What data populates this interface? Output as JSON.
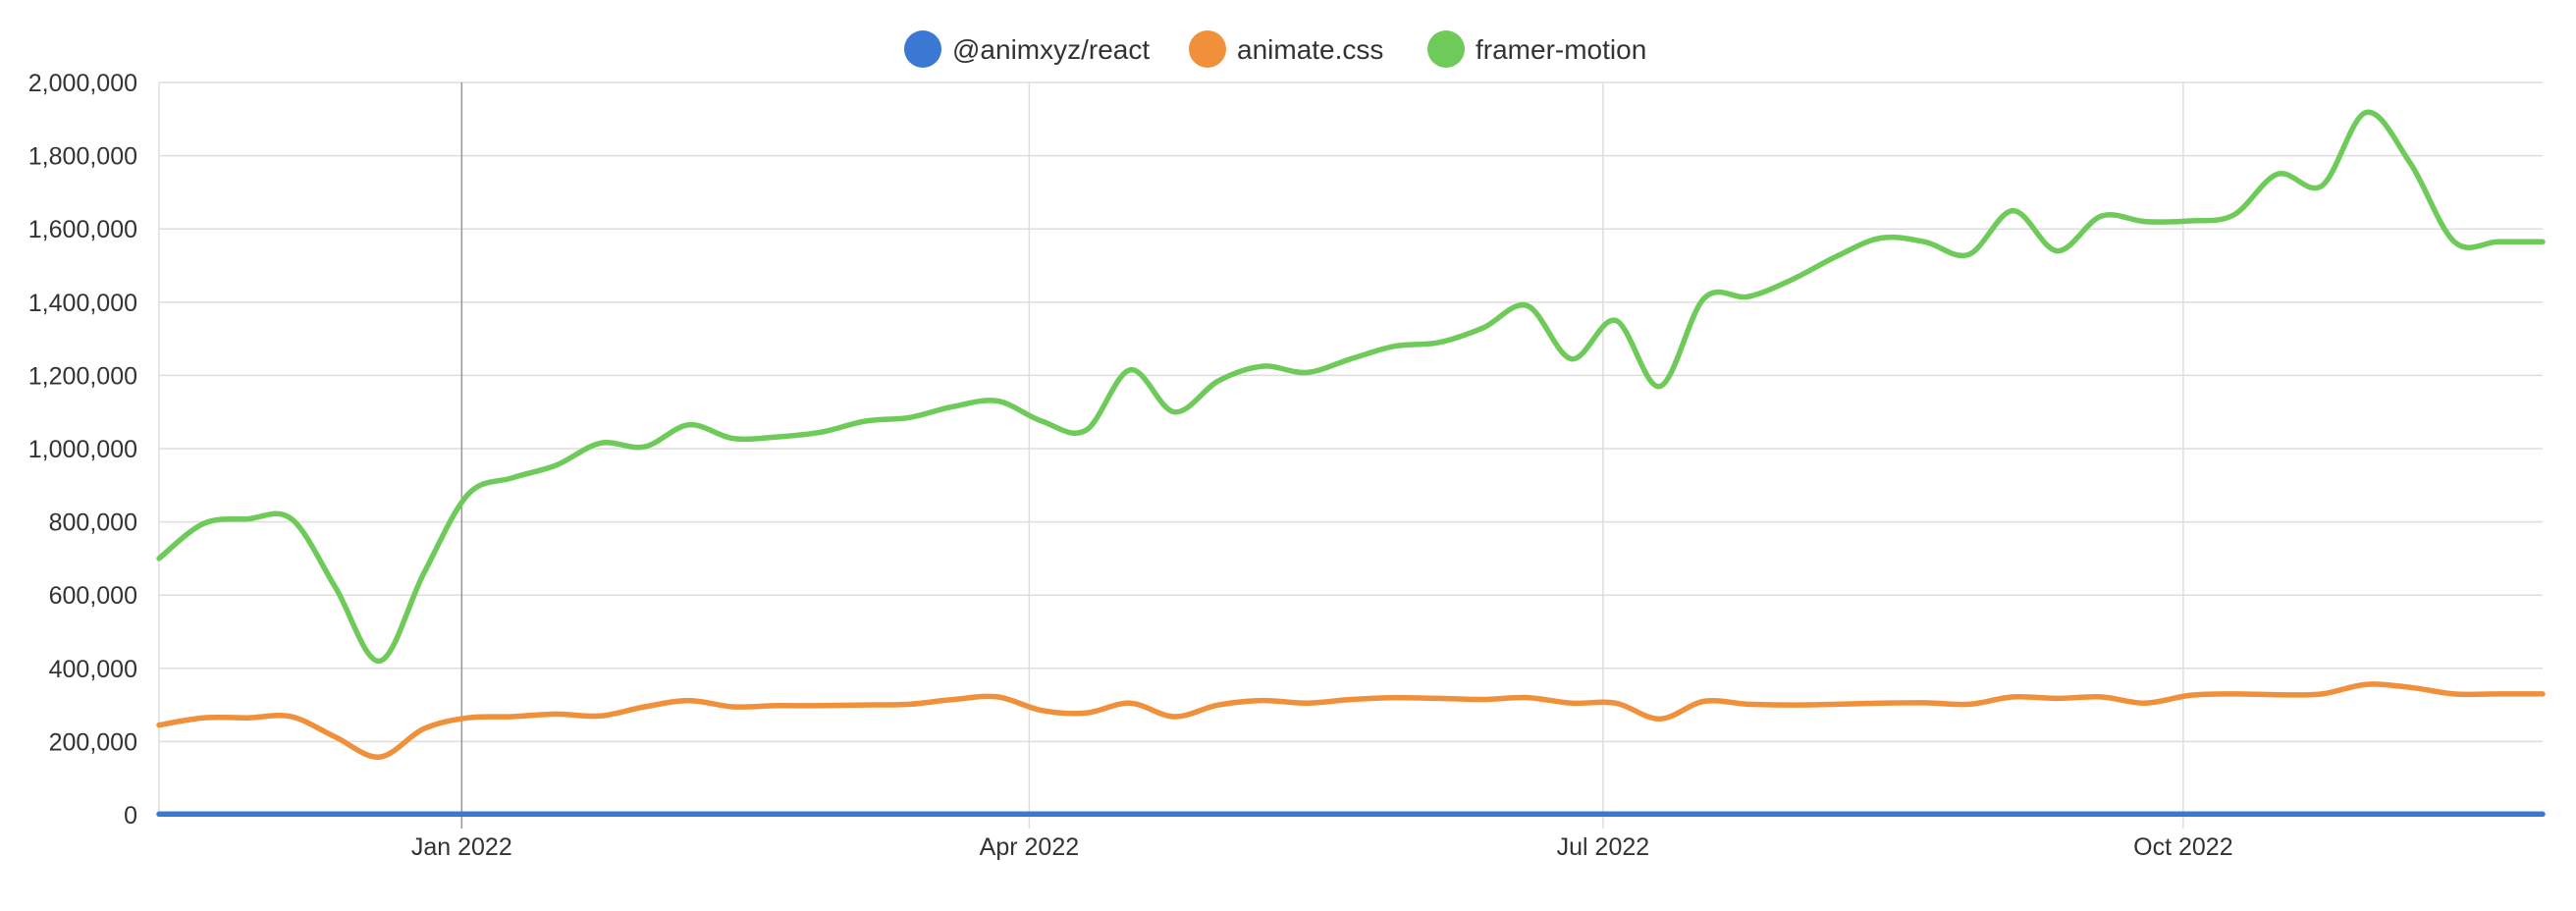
{
  "chart_data": {
    "type": "line",
    "legend_position": "top-center",
    "grid": true,
    "x_ticks": [
      "Jan 2022",
      "Apr 2022",
      "Jul 2022",
      "Oct 2022"
    ],
    "x_tick_dates": [
      "2022-01-01",
      "2022-04-01",
      "2022-07-01",
      "2022-10-01"
    ],
    "x_range": [
      "2021-11-14",
      "2022-11-27"
    ],
    "ylim": [
      0,
      2000000
    ],
    "y_ticks": [
      "0",
      "200,000",
      "400,000",
      "600,000",
      "800,000",
      "1,000,000",
      "1,200,000",
      "1,400,000",
      "1,600,000",
      "1,800,000",
      "2,000,000"
    ],
    "x": [
      "2021-11-14",
      "2021-11-21",
      "2021-11-28",
      "2021-12-05",
      "2021-12-12",
      "2021-12-19",
      "2021-12-26",
      "2022-01-02",
      "2022-01-09",
      "2022-01-16",
      "2022-01-23",
      "2022-01-30",
      "2022-02-06",
      "2022-02-13",
      "2022-02-20",
      "2022-02-27",
      "2022-03-06",
      "2022-03-13",
      "2022-03-20",
      "2022-03-27",
      "2022-04-03",
      "2022-04-10",
      "2022-04-17",
      "2022-04-24",
      "2022-05-01",
      "2022-05-08",
      "2022-05-15",
      "2022-05-22",
      "2022-05-29",
      "2022-06-05",
      "2022-06-12",
      "2022-06-19",
      "2022-06-26",
      "2022-07-03",
      "2022-07-10",
      "2022-07-17",
      "2022-07-24",
      "2022-07-31",
      "2022-08-07",
      "2022-08-14",
      "2022-08-21",
      "2022-08-28",
      "2022-09-04",
      "2022-09-11",
      "2022-09-18",
      "2022-09-25",
      "2022-10-02",
      "2022-10-09",
      "2022-10-16",
      "2022-10-23",
      "2022-10-30",
      "2022-11-06",
      "2022-11-13",
      "2022-11-20",
      "2022-11-27"
    ],
    "series": [
      {
        "name": "@animxyz/react",
        "color": "#3a78d4",
        "values": [
          2000,
          2000,
          2000,
          2000,
          2000,
          2000,
          2000,
          2000,
          2000,
          2000,
          2000,
          2000,
          2000,
          2000,
          2000,
          2000,
          2000,
          2000,
          2000,
          2000,
          2000,
          2000,
          2000,
          2000,
          2000,
          2000,
          2000,
          2000,
          2000,
          2000,
          2000,
          2000,
          2000,
          2000,
          2000,
          2000,
          2000,
          2000,
          2000,
          2000,
          2000,
          2000,
          2000,
          2000,
          2000,
          2000,
          2000,
          2000,
          2000,
          2000,
          2000,
          2000,
          2000,
          2000,
          2000
        ]
      },
      {
        "name": "animate.css",
        "color": "#f0903a",
        "values": [
          245000,
          265000,
          265000,
          268000,
          212000,
          158000,
          235000,
          265000,
          268000,
          275000,
          270000,
          295000,
          312000,
          295000,
          298000,
          298000,
          300000,
          302000,
          315000,
          322000,
          285000,
          278000,
          305000,
          268000,
          300000,
          312000,
          305000,
          315000,
          320000,
          318000,
          315000,
          320000,
          305000,
          305000,
          262000,
          310000,
          302000,
          300000,
          302000,
          305000,
          306000,
          302000,
          322000,
          318000,
          322000,
          305000,
          326000,
          330000,
          328000,
          330000,
          356000,
          348000,
          330000,
          330000,
          330000
        ]
      },
      {
        "name": "framer-motion",
        "color": "#6fcb59",
        "values": [
          700000,
          795000,
          808000,
          808000,
          620000,
          420000,
          660000,
          875000,
          920000,
          955000,
          1015000,
          1005000,
          1065000,
          1028000,
          1032000,
          1045000,
          1075000,
          1085000,
          1115000,
          1130000,
          1075000,
          1050000,
          1215000,
          1100000,
          1185000,
          1225000,
          1208000,
          1245000,
          1280000,
          1290000,
          1330000,
          1390000,
          1245000,
          1350000,
          1170000,
          1410000,
          1415000,
          1462000,
          1525000,
          1575000,
          1565000,
          1530000,
          1650000,
          1540000,
          1635000,
          1620000,
          1622000,
          1638000,
          1750000,
          1718000,
          1918000,
          1780000,
          1565000,
          1565000,
          1565000
        ]
      }
    ]
  }
}
